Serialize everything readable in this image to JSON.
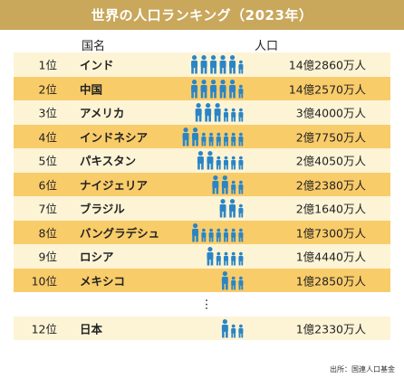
{
  "title": "世界の人口ランキング（2023年）",
  "header": {
    "country": "国名",
    "population": "人口"
  },
  "source": "出所：国連人口基金",
  "colors": {
    "title_bg": "#c9a75b",
    "row_light": "#fdf4d6",
    "row_dark": "#f9cc6a",
    "icon": "#2b85c5"
  },
  "gap_symbol": "︙",
  "chart_data": {
    "type": "table",
    "title": "世界の人口ランキング（2023年）",
    "columns": [
      "国名",
      "人口"
    ],
    "rows": [
      {
        "rank": "1位",
        "country": "インド",
        "population": "14億2860万人",
        "value": 1428600000,
        "icons": {
          "adults": 5,
          "children": 1
        }
      },
      {
        "rank": "2位",
        "country": "中国",
        "population": "14億2570万人",
        "value": 1425700000,
        "icons": {
          "adults": 5,
          "children": 1
        }
      },
      {
        "rank": "3位",
        "country": "アメリカ",
        "population": "3億4000万人",
        "value": 340000000,
        "icons": {
          "adults": 3,
          "children": 3
        }
      },
      {
        "rank": "4位",
        "country": "インドネシア",
        "population": "2億7750万人",
        "value": 277500000,
        "icons": {
          "adults": 2,
          "children": 6
        }
      },
      {
        "rank": "5位",
        "country": "パキスタン",
        "population": "2億4050万人",
        "value": 240500000,
        "icons": {
          "adults": 2,
          "children": 4
        }
      },
      {
        "rank": "6位",
        "country": "ナイジェリア",
        "population": "2億2380万人",
        "value": 223800000,
        "icons": {
          "adults": 2,
          "children": 2
        }
      },
      {
        "rank": "7位",
        "country": "ブラジル",
        "population": "2億1640万人",
        "value": 216400000,
        "icons": {
          "adults": 2,
          "children": 1
        }
      },
      {
        "rank": "8位",
        "country": "バングラデシュ",
        "population": "1億7300万人",
        "value": 173000000,
        "icons": {
          "adults": 1,
          "children": 6
        }
      },
      {
        "rank": "9位",
        "country": "ロシア",
        "population": "1億4440万人",
        "value": 144400000,
        "icons": {
          "adults": 1,
          "children": 4
        }
      },
      {
        "rank": "10位",
        "country": "メキシコ",
        "population": "1億2850万人",
        "value": 128500000,
        "icons": {
          "adults": 1,
          "children": 2
        }
      },
      {
        "rank": "12位",
        "country": "日本",
        "population": "1億2330万人",
        "value": 123300000,
        "icons": {
          "adults": 1,
          "children": 2
        }
      }
    ]
  }
}
